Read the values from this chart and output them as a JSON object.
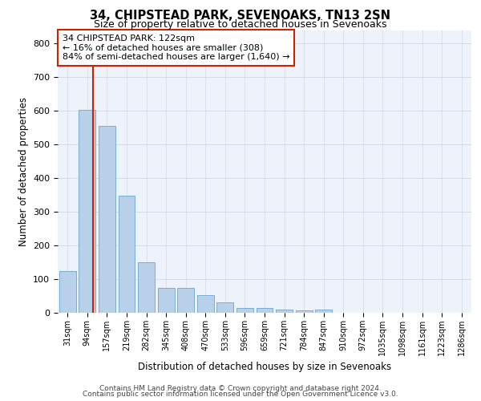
{
  "title1": "34, CHIPSTEAD PARK, SEVENOAKS, TN13 2SN",
  "title2": "Size of property relative to detached houses in Sevenoaks",
  "xlabel": "Distribution of detached houses by size in Sevenoaks",
  "ylabel": "Number of detached properties",
  "categories": [
    "31sqm",
    "94sqm",
    "157sqm",
    "219sqm",
    "282sqm",
    "345sqm",
    "408sqm",
    "470sqm",
    "533sqm",
    "596sqm",
    "659sqm",
    "721sqm",
    "784sqm",
    "847sqm",
    "910sqm",
    "972sqm",
    "1035sqm",
    "1098sqm",
    "1161sqm",
    "1223sqm",
    "1286sqm"
  ],
  "values": [
    125,
    603,
    555,
    347,
    150,
    75,
    75,
    52,
    32,
    15,
    14,
    10,
    8,
    10,
    0,
    0,
    0,
    0,
    0,
    0,
    0
  ],
  "bar_color": "#b8d0ea",
  "bar_edge_color": "#7aadd4",
  "vline_x": 1.28,
  "vline_color": "#cc2200",
  "annotation_text": "34 CHIPSTEAD PARK: 122sqm\n← 16% of detached houses are smaller (308)\n84% of semi-detached houses are larger (1,640) →",
  "annotation_box_color": "#ffffff",
  "annotation_box_edge": "#cc2200",
  "ylim": [
    0,
    840
  ],
  "yticks": [
    0,
    100,
    200,
    300,
    400,
    500,
    600,
    700,
    800
  ],
  "bg_color": "#eef2fa",
  "grid_color": "#d0d8e8",
  "footer1": "Contains HM Land Registry data © Crown copyright and database right 2024.",
  "footer2": "Contains public sector information licensed under the Open Government Licence v3.0."
}
